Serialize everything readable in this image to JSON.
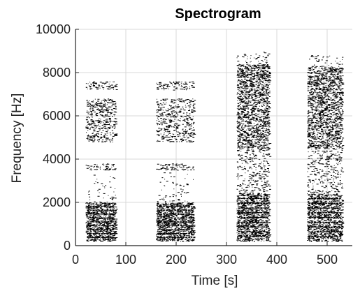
{
  "chart_data": {
    "type": "heatmap",
    "title": "Spectrogram",
    "xlabel": "Time [s]",
    "ylabel": "Frequency [Hz]",
    "xlim": [
      0,
      550
    ],
    "ylim": [
      0,
      10000
    ],
    "xticks": [
      0,
      100,
      200,
      300,
      400,
      500
    ],
    "yticks": [
      0,
      2000,
      4000,
      6000,
      8000,
      10000
    ],
    "xtick_labels": [
      "0",
      "100",
      "200",
      "300",
      "400",
      "500"
    ],
    "ytick_labels": [
      "0",
      "2000",
      "4000",
      "6000",
      "8000",
      "10000"
    ],
    "grid": true,
    "colors": {
      "marks": "#000000",
      "grid": "#d9d9d9",
      "axis": "#222222",
      "background": "#ffffff"
    },
    "segments": [
      {
        "t_start": 20,
        "t_end": 80,
        "bands": [
          {
            "f_low": 200,
            "f_high": 2000,
            "density": 0.75
          },
          {
            "f_low": 2000,
            "f_high": 3400,
            "density": 0.05
          },
          {
            "f_low": 3500,
            "f_high": 3800,
            "density": 0.3
          },
          {
            "f_low": 4800,
            "f_high": 6800,
            "density": 0.35
          },
          {
            "f_low": 7200,
            "f_high": 7600,
            "density": 0.3
          }
        ]
      },
      {
        "t_start": 160,
        "t_end": 235,
        "bands": [
          {
            "f_low": 200,
            "f_high": 2000,
            "density": 0.75
          },
          {
            "f_low": 2000,
            "f_high": 3400,
            "density": 0.05
          },
          {
            "f_low": 3500,
            "f_high": 3800,
            "density": 0.3
          },
          {
            "f_low": 4800,
            "f_high": 6800,
            "density": 0.3
          },
          {
            "f_low": 7200,
            "f_high": 7600,
            "density": 0.3
          }
        ]
      },
      {
        "t_start": 320,
        "t_end": 385,
        "bands": [
          {
            "f_low": 200,
            "f_high": 2400,
            "density": 0.7
          },
          {
            "f_low": 2400,
            "f_high": 4500,
            "density": 0.2
          },
          {
            "f_low": 4500,
            "f_high": 8400,
            "density": 0.6
          },
          {
            "f_low": 8400,
            "f_high": 9000,
            "density": 0.1
          }
        ]
      },
      {
        "t_start": 460,
        "t_end": 530,
        "bands": [
          {
            "f_low": 200,
            "f_high": 2400,
            "density": 0.65
          },
          {
            "f_low": 2400,
            "f_high": 4500,
            "density": 0.2
          },
          {
            "f_low": 4500,
            "f_high": 8300,
            "density": 0.55
          },
          {
            "f_low": 8300,
            "f_high": 8800,
            "density": 0.1
          }
        ]
      }
    ]
  }
}
